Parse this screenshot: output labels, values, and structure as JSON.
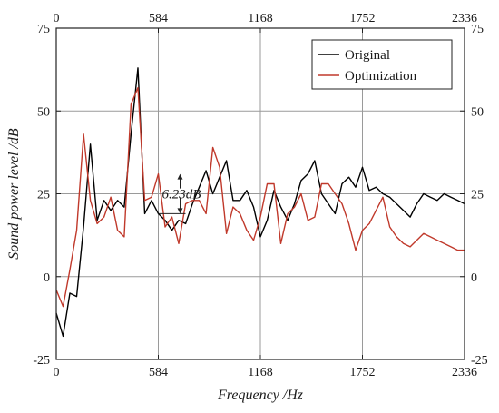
{
  "chart_data": {
    "type": "line",
    "xlabel": "Frequency /Hz",
    "ylabel": "Sound power level /dB",
    "xlim": [
      0,
      2336
    ],
    "ylim": [
      -25,
      75
    ],
    "xticks": [
      0,
      584,
      1168,
      1752,
      2336
    ],
    "yticks": [
      -25,
      0,
      25,
      50,
      75
    ],
    "xtick_labels": [
      "0",
      "584",
      "1168",
      "1752",
      "2336"
    ],
    "ytick_labels": [
      "-25",
      "0",
      "25",
      "50",
      "75"
    ],
    "grid": true,
    "legend_position": "top-right",
    "annotation": "6.23dB",
    "x": [
      0,
      39,
      78,
      117,
      156,
      195,
      234,
      273,
      312,
      351,
      389,
      428,
      467,
      506,
      545,
      584,
      623,
      662,
      701,
      740,
      779,
      818,
      857,
      896,
      935,
      974,
      1012,
      1051,
      1090,
      1129,
      1168,
      1207,
      1246,
      1285,
      1324,
      1363,
      1401,
      1440,
      1479,
      1518,
      1557,
      1596,
      1635,
      1674,
      1713,
      1752,
      1791,
      1830,
      1869,
      1908,
      1947,
      1986,
      2025,
      2063,
      2102,
      2141,
      2180,
      2219,
      2258,
      2297,
      2336
    ],
    "series": [
      {
        "name": "Original",
        "color": "#000000",
        "values": [
          -11,
          -18,
          -5,
          -6,
          15,
          40,
          17,
          23,
          20,
          23,
          21,
          43,
          63,
          19,
          23,
          19,
          17,
          14,
          17,
          16,
          22,
          27,
          32,
          25,
          30,
          35,
          23,
          23,
          26,
          21,
          12,
          17,
          26,
          21,
          17,
          22,
          29,
          31,
          35,
          25,
          22,
          19,
          28,
          30,
          27,
          33,
          26,
          27,
          25,
          24,
          22,
          20,
          18,
          22,
          25,
          24,
          23,
          25,
          24,
          23,
          22
        ]
      },
      {
        "name": "Optimization",
        "color": "#c0392b",
        "values": [
          -4,
          -9,
          2,
          14,
          43,
          23,
          16,
          18,
          24,
          14,
          12,
          52,
          57,
          23,
          24,
          31,
          15,
          18,
          10,
          22,
          23,
          23,
          19,
          39,
          33,
          13,
          21,
          19,
          14,
          11,
          18,
          28,
          28,
          10,
          19,
          21,
          25,
          17,
          18,
          28,
          28,
          25,
          22,
          16,
          8,
          14,
          16,
          20,
          24,
          15,
          12,
          10,
          9,
          11,
          13,
          12,
          11,
          10,
          9,
          8,
          8
        ]
      }
    ]
  }
}
